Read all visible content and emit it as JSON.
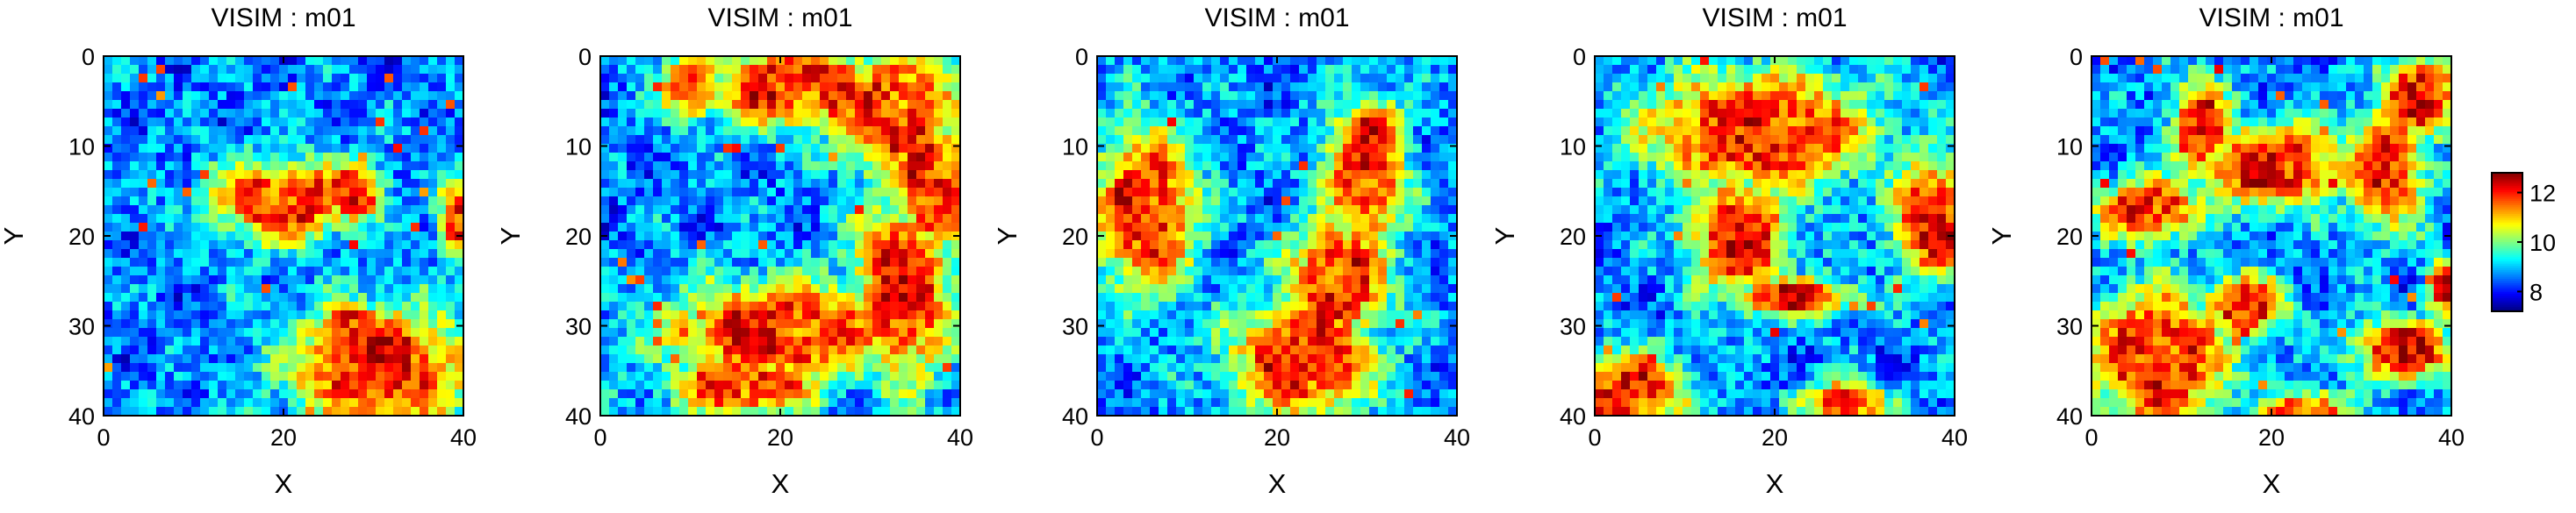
{
  "chart_data": {
    "type": "heatmap",
    "colorbar": {
      "ticks": [
        8,
        10,
        12
      ],
      "range": [
        7.2,
        12.8
      ],
      "colormap": "jet",
      "placement": "right"
    },
    "panels": [
      {
        "title": "VISIM : m01",
        "xlabel": "X",
        "ylabel": "Y",
        "xticks": [
          0,
          20,
          40
        ],
        "yticks": [
          0,
          10,
          20,
          30,
          40
        ],
        "xlim": [
          0,
          40
        ],
        "ylim": [
          0,
          40
        ],
        "grid_size": 41,
        "high_zones": [
          {
            "cx": 20,
            "cy": 16,
            "rx": 7,
            "ry": 4
          },
          {
            "cx": 28,
            "cy": 15,
            "rx": 3,
            "ry": 3
          },
          {
            "cx": 31,
            "cy": 35,
            "rx": 9,
            "ry": 6
          },
          {
            "cx": 28,
            "cy": 31,
            "rx": 4,
            "ry": 3
          },
          {
            "cx": 40,
            "cy": 18,
            "rx": 2,
            "ry": 4
          }
        ]
      },
      {
        "title": "VISIM : m01",
        "xlabel": "X",
        "ylabel": "Y",
        "xticks": [
          0,
          20,
          40
        ],
        "yticks": [
          0,
          10,
          20,
          30,
          40
        ],
        "xlim": [
          0,
          40
        ],
        "ylim": [
          0,
          40
        ],
        "grid_size": 41,
        "high_zones": [
          {
            "cx": 22,
            "cy": 3,
            "rx": 9,
            "ry": 4
          },
          {
            "cx": 33,
            "cy": 6,
            "rx": 6,
            "ry": 6
          },
          {
            "cx": 37,
            "cy": 14,
            "rx": 4,
            "ry": 7
          },
          {
            "cx": 34,
            "cy": 26,
            "rx": 5,
            "ry": 9
          },
          {
            "cx": 20,
            "cy": 31,
            "rx": 11,
            "ry": 5
          },
          {
            "cx": 16,
            "cy": 37,
            "rx": 7,
            "ry": 3
          },
          {
            "cx": 10,
            "cy": 3,
            "rx": 3,
            "ry": 3
          }
        ]
      },
      {
        "title": "VISIM : m01",
        "xlabel": "X",
        "ylabel": "Y",
        "xticks": [
          0,
          20,
          40
        ],
        "yticks": [
          0,
          10,
          20,
          30,
          40
        ],
        "xlim": [
          0,
          40
        ],
        "ylim": [
          0,
          40
        ],
        "grid_size": 41,
        "high_zones": [
          {
            "cx": 5,
            "cy": 17,
            "rx": 5,
            "ry": 8
          },
          {
            "cx": 30,
            "cy": 13,
            "rx": 4,
            "ry": 7
          },
          {
            "cx": 27,
            "cy": 25,
            "rx": 5,
            "ry": 6
          },
          {
            "cx": 23,
            "cy": 34,
            "rx": 7,
            "ry": 6
          },
          {
            "cx": 31,
            "cy": 8,
            "rx": 3,
            "ry": 3
          }
        ]
      },
      {
        "title": "VISIM : m01",
        "xlabel": "X",
        "ylabel": "Y",
        "xticks": [
          0,
          20,
          40
        ],
        "yticks": [
          0,
          10,
          20,
          30,
          40
        ],
        "xlim": [
          0,
          40
        ],
        "ylim": [
          0,
          40
        ],
        "grid_size": 41,
        "high_zones": [
          {
            "cx": 18,
            "cy": 8,
            "rx": 11,
            "ry": 6
          },
          {
            "cx": 16,
            "cy": 20,
            "rx": 5,
            "ry": 6
          },
          {
            "cx": 22,
            "cy": 27,
            "rx": 6,
            "ry": 2
          },
          {
            "cx": 38,
            "cy": 18,
            "rx": 4,
            "ry": 6
          },
          {
            "cx": 3,
            "cy": 38,
            "rx": 6,
            "ry": 4
          },
          {
            "cx": 28,
            "cy": 39,
            "rx": 4,
            "ry": 2
          }
        ]
      },
      {
        "title": "VISIM : m01",
        "xlabel": "X",
        "ylabel": "Y",
        "xticks": [
          0,
          20,
          40
        ],
        "yticks": [
          0,
          10,
          20,
          30,
          40
        ],
        "xlim": [
          0,
          40
        ],
        "ylim": [
          0,
          40
        ],
        "grid_size": 41,
        "high_zones": [
          {
            "cx": 37,
            "cy": 4,
            "rx": 4,
            "ry": 4
          },
          {
            "cx": 33,
            "cy": 12,
            "rx": 4,
            "ry": 6
          },
          {
            "cx": 20,
            "cy": 12,
            "rx": 8,
            "ry": 4
          },
          {
            "cx": 12,
            "cy": 8,
            "rx": 3,
            "ry": 5
          },
          {
            "cx": 6,
            "cy": 17,
            "rx": 5,
            "ry": 3
          },
          {
            "cx": 7,
            "cy": 34,
            "rx": 7,
            "ry": 7
          },
          {
            "cx": 17,
            "cy": 28,
            "rx": 4,
            "ry": 3
          },
          {
            "cx": 35,
            "cy": 33,
            "rx": 5,
            "ry": 3
          },
          {
            "cx": 40,
            "cy": 26,
            "rx": 2,
            "ry": 3
          },
          {
            "cx": 24,
            "cy": 40,
            "rx": 4,
            "ry": 2
          }
        ]
      }
    ]
  }
}
